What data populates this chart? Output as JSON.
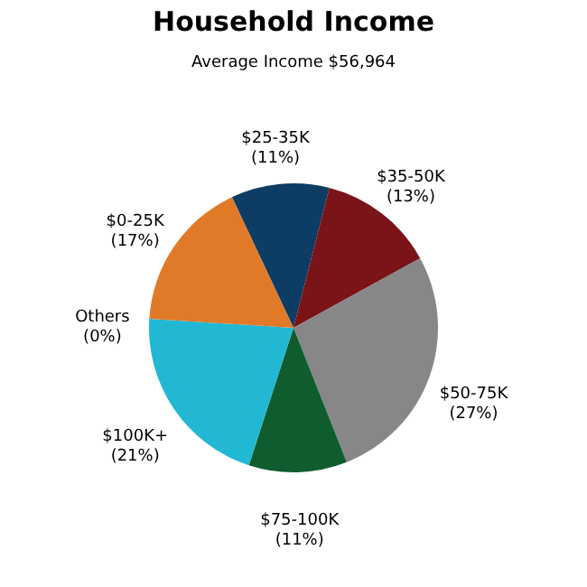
{
  "chart_data": {
    "type": "pie",
    "title": "Household Income",
    "subtitle": "Average Income  $56,964",
    "categories": [
      "$25-35K",
      "$35-50K",
      "$50-75K",
      "$75-100K",
      "$100K+",
      "Others",
      "$0-25K"
    ],
    "values": [
      11,
      13,
      27,
      11,
      21,
      0,
      17
    ],
    "colors": [
      "#0d3c64",
      "#7a1418",
      "#878787",
      "#0f5c2e",
      "#22b8d4",
      "#999999",
      "#e07a28"
    ],
    "value_labels": [
      "(11%)",
      "(13%)",
      "(27%)",
      "(11%)",
      "(21%)",
      "(0%)",
      "(17%)"
    ],
    "legend": false
  }
}
